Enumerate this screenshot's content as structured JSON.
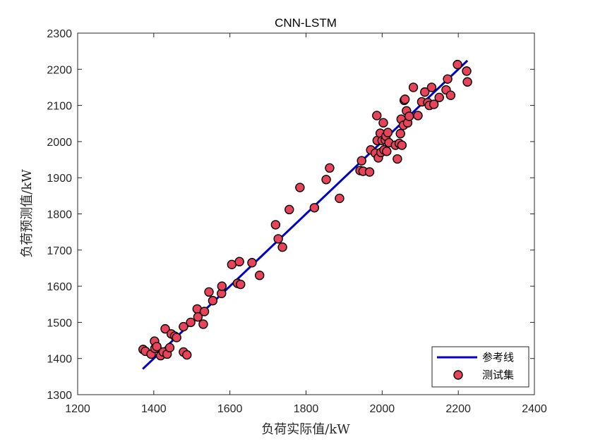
{
  "chart_data": {
    "type": "scatter",
    "title": "CNN-LSTM",
    "xlabel": "负荷实际值/kW",
    "ylabel": "负荷预测值/kW",
    "xlim": [
      1200,
      2400
    ],
    "ylim": [
      1300,
      2300
    ],
    "xticks": [
      "1200",
      "1400",
      "1600",
      "1800",
      "2000",
      "2200",
      "2400"
    ],
    "yticks": [
      "1300",
      "1400",
      "1500",
      "1600",
      "1700",
      "1800",
      "1900",
      "2000",
      "2100",
      "2200",
      "2300"
    ],
    "grid": false,
    "legend_position": "bottom-right",
    "series": [
      {
        "name": "参考线",
        "kind": "line",
        "color": "#0000cc",
        "x": [
          1371,
          2224
        ],
        "y": [
          1371,
          2224
        ]
      },
      {
        "name": "测试集",
        "kind": "scatter",
        "color": "#e8435a",
        "edge_color": "#000000",
        "x": [
          1372,
          1378,
          1393,
          1403,
          1402,
          1408,
          1418,
          1425,
          1430,
          1435,
          1442,
          1446,
          1455,
          1460,
          1478,
          1478,
          1487,
          1497,
          1514,
          1516,
          1530,
          1533,
          1545,
          1555,
          1578,
          1579,
          1605,
          1620,
          1625,
          1628,
          1658,
          1678,
          1720,
          1727,
          1738,
          1756,
          1784,
          1822,
          1853,
          1862,
          1888,
          1942,
          1946,
          1950,
          1967,
          1970,
          1982,
          1986,
          1987,
          1990,
          1995,
          1997,
          2000,
          2003,
          2005,
          2008,
          2010,
          2012,
          2015,
          2018,
          2035,
          2040,
          2045,
          2048,
          2050,
          2052,
          2056,
          2058,
          2060,
          2064,
          2067,
          2071,
          2082,
          2094,
          2104,
          2112,
          2120,
          2124,
          2130,
          2136,
          2150,
          2168,
          2172,
          2180,
          2198,
          2222,
          2224
        ],
        "y": [
          1425,
          1420,
          1412,
          1428,
          1448,
          1433,
          1408,
          1418,
          1482,
          1412,
          1430,
          1468,
          1462,
          1458,
          1488,
          1418,
          1410,
          1500,
          1537,
          1515,
          1495,
          1530,
          1584,
          1560,
          1580,
          1600,
          1660,
          1608,
          1668,
          1605,
          1665,
          1630,
          1770,
          1731,
          1708,
          1812,
          1873,
          1817,
          1895,
          1927,
          1843,
          1920,
          1947,
          1918,
          1916,
          1977,
          1968,
          2072,
          2003,
          1955,
          2023,
          1970,
          2003,
          2052,
          1977,
          2005,
          2015,
          1973,
          2025,
          1997,
          1990,
          1952,
          1995,
          2022,
          2062,
          1990,
          2045,
          2114,
          2117,
          2085,
          2052,
          2070,
          2150,
          2072,
          2110,
          2137,
          2108,
          2100,
          2150,
          2103,
          2122,
          2143,
          2173,
          2128,
          2213,
          2195,
          2165
        ]
      }
    ]
  }
}
